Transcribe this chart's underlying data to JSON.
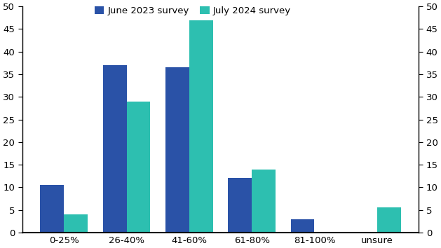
{
  "categories": [
    "0-25%",
    "26-40%",
    "41-60%",
    "61-80%",
    "81-100%",
    "unsure"
  ],
  "series": {
    "June 2023 survey": [
      10.5,
      37,
      36.5,
      12,
      3,
      0
    ],
    "July 2024 survey": [
      4,
      29,
      47,
      14,
      0,
      5.5
    ]
  },
  "colors": {
    "June 2023 survey": "#2a52a7",
    "July 2024 survey": "#2dbfb0"
  },
  "ylim": [
    0,
    50
  ],
  "yticks": [
    0,
    5,
    10,
    15,
    20,
    25,
    30,
    35,
    40,
    45,
    50
  ],
  "bar_width": 0.38,
  "background_color": "#ffffff",
  "legend_fontsize": 9.5,
  "tick_fontsize": 9.5
}
